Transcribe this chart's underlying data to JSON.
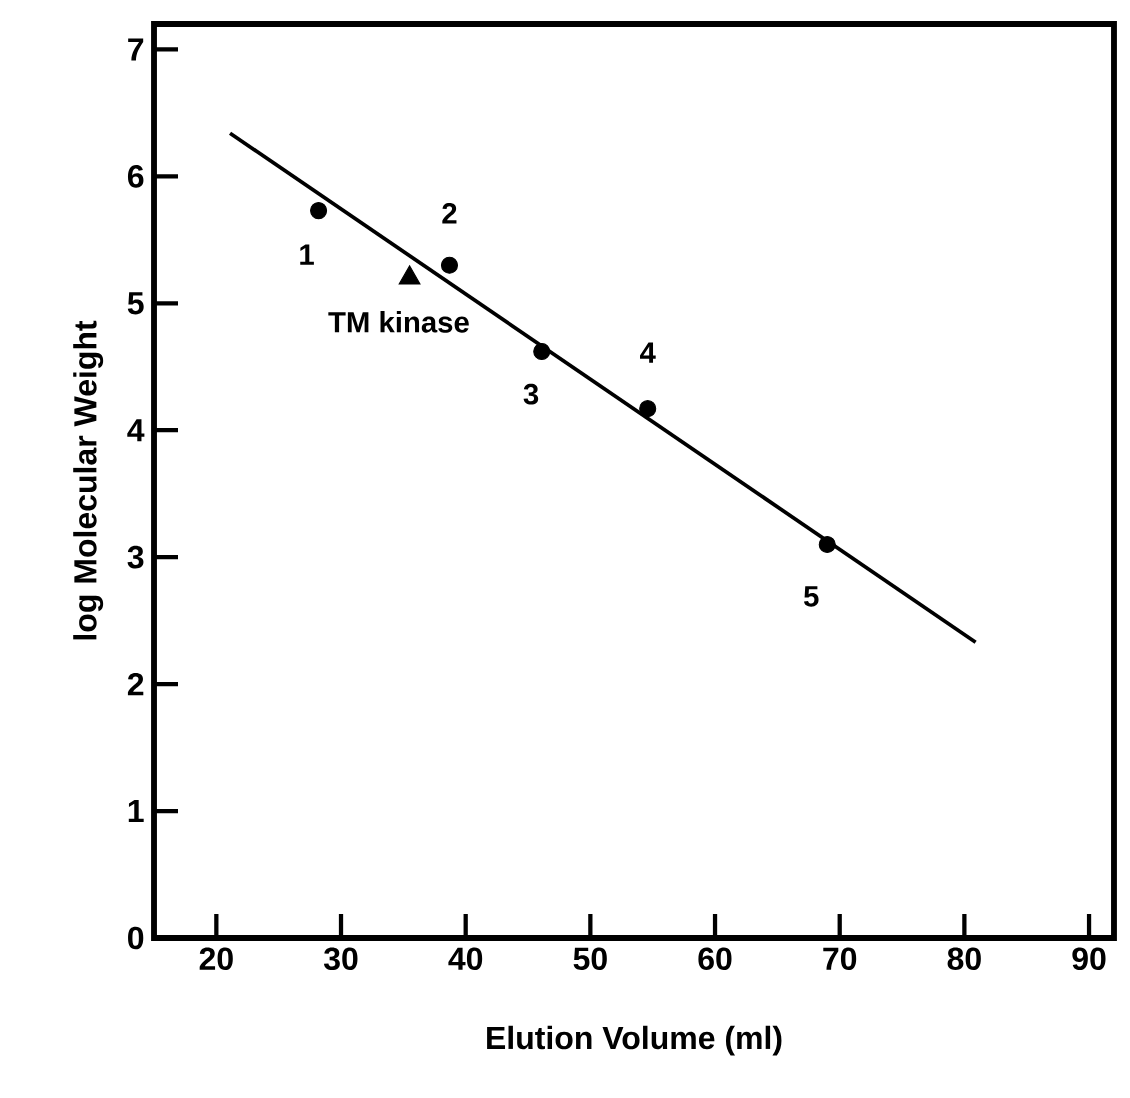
{
  "chart_data": {
    "type": "scatter",
    "xlabel": "Elution Volume (ml)",
    "ylabel": "log Molecular Weight",
    "xlim": [
      15,
      92
    ],
    "ylim": [
      0,
      7.2
    ],
    "xticks": [
      20,
      30,
      40,
      50,
      60,
      70,
      80,
      90
    ],
    "yticks": [
      0,
      1,
      2,
      3,
      4,
      5,
      6,
      7
    ],
    "grid": false,
    "legend": false,
    "series": [
      {
        "type": "line",
        "color": "#000000",
        "marker": "none",
        "line_style": "solid",
        "x": [
          21.1,
          80.9
        ],
        "values": [
          6.34,
          2.33
        ]
      },
      {
        "color": "#000000",
        "marker": "circle",
        "x": [
          28.2,
          38.7,
          46.1,
          54.6,
          69.0
        ],
        "values": [
          5.73,
          5.3,
          4.62,
          4.17,
          3.1
        ]
      },
      {
        "color": "#000000",
        "marker": "triangle",
        "x": [
          35.5
        ],
        "values": [
          5.2
        ]
      }
    ],
    "annotations": [
      {
        "text": "1",
        "x": 28.2,
        "y": 5.73
      },
      {
        "text": "2",
        "x": 38.7,
        "y": 5.3
      },
      {
        "text": "3",
        "x": 46.1,
        "y": 4.62
      },
      {
        "text": "4",
        "x": 54.6,
        "y": 4.17
      },
      {
        "text": "5",
        "x": 69.0,
        "y": 3.1
      },
      {
        "text": "TM kinase",
        "x": 35.5,
        "y": 5.2
      }
    ]
  }
}
